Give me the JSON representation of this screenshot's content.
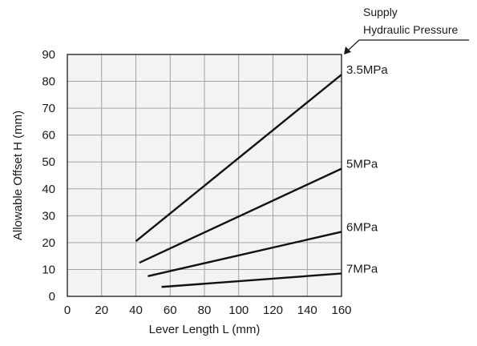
{
  "chart_data": {
    "type": "line",
    "xlabel": "Lever Length L (mm)",
    "ylabel": "Allowable Offset H (mm)",
    "xlim": [
      0,
      160
    ],
    "ylim": [
      0,
      90
    ],
    "x_ticks": [
      0,
      20,
      40,
      60,
      80,
      100,
      120,
      140,
      160
    ],
    "y_ticks": [
      0,
      10,
      20,
      30,
      40,
      50,
      60,
      70,
      80,
      90
    ],
    "grid": true,
    "legend_title": [
      "Supply",
      "Hydraulic Pressure"
    ],
    "series": [
      {
        "name": "3.5MPa",
        "x": [
          40,
          160
        ],
        "y": [
          20.5,
          82.5
        ]
      },
      {
        "name": "5MPa",
        "x": [
          42,
          160
        ],
        "y": [
          12.5,
          47.5
        ]
      },
      {
        "name": "6MPa",
        "x": [
          47,
          160
        ],
        "y": [
          7.5,
          24
        ]
      },
      {
        "name": "7MPa",
        "x": [
          55,
          160
        ],
        "y": [
          3.5,
          8.5
        ]
      }
    ]
  }
}
